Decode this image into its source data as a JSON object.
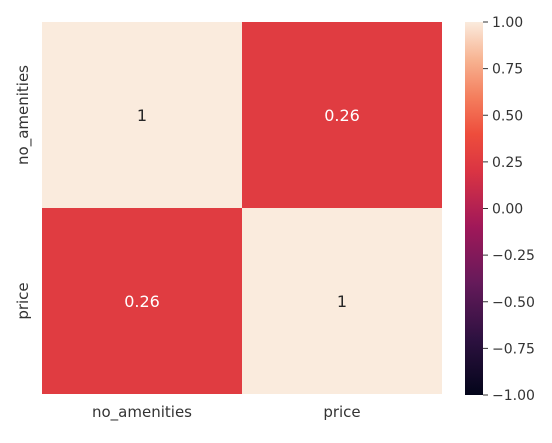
{
  "chart_data": {
    "type": "heatmap",
    "row_labels": [
      "no_amenities",
      "price"
    ],
    "col_labels": [
      "no_amenities",
      "price"
    ],
    "values": [
      [
        1,
        0.26
      ],
      [
        0.26,
        1
      ]
    ],
    "annotations": [
      [
        "1",
        "0.26"
      ],
      [
        "0.26",
        "1"
      ]
    ],
    "colorbar": {
      "range": [
        -1.0,
        1.0
      ],
      "ticks": [
        1.0,
        0.75,
        0.5,
        0.25,
        0.0,
        -0.25,
        -0.5,
        -0.75,
        -1.0
      ],
      "tick_labels": [
        "1.00",
        "0.75",
        "0.50",
        "0.25",
        "0.00",
        "−0.25",
        "−0.50",
        "−0.75",
        "−1.00"
      ],
      "colormap": "rocket"
    },
    "colors": {
      "high": "#faebdd",
      "mid_high": "#ee4d3c",
      "low": "#03051a",
      "annotation_on_light": "#262626",
      "annotation_on_dark": "#ffffff"
    }
  }
}
